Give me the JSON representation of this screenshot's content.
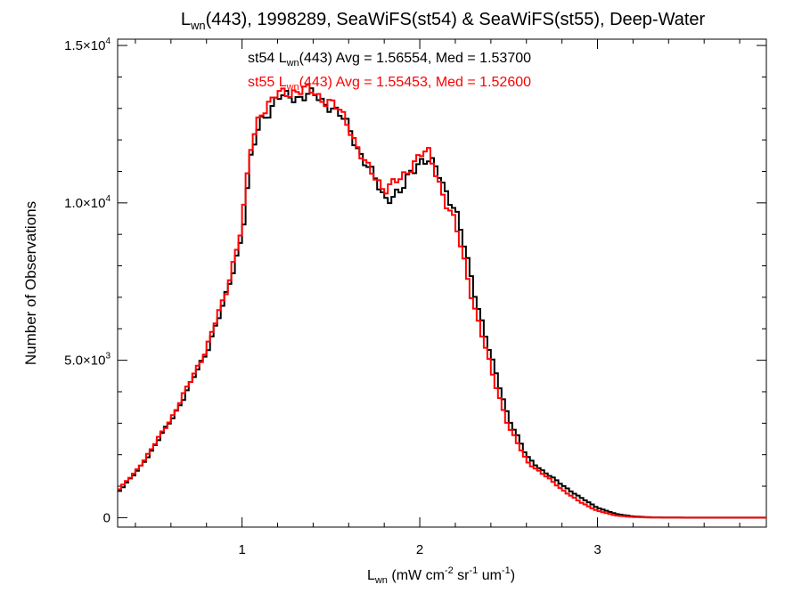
{
  "chart_data": {
    "type": "line",
    "title": {
      "main": "L",
      "sub": "wn",
      "rest": "(443), 1998289, SeaWiFS(st54) & SeaWiFS(st55), Deep-Water"
    },
    "xlabel": {
      "main": "L",
      "sub": "wn",
      "rest": " (mW cm",
      "sup1": "-2",
      "mid1": " sr",
      "sup2": "-1",
      "mid2": " um",
      "sup3": "-1",
      "end": ")"
    },
    "ylabel": "Number of Observations",
    "xlim": [
      0.3,
      3.95
    ],
    "ylim": [
      -300,
      15200
    ],
    "xticks": [
      {
        "value": 1,
        "label": "1"
      },
      {
        "value": 2,
        "label": "2"
      },
      {
        "value": 3,
        "label": "3"
      }
    ],
    "yticks": [
      {
        "value": 0,
        "mant": "0",
        "exp": ""
      },
      {
        "value": 5000,
        "mant": "5.0×10",
        "exp": "3"
      },
      {
        "value": 10000,
        "mant": "1.0×10",
        "exp": "4"
      },
      {
        "value": 15000,
        "mant": "1.5×10",
        "exp": "4"
      }
    ],
    "annotations": [
      {
        "pre": "st54 L",
        "sub": "wn",
        "post": "(443) Avg = 1.56554, Med = 1.53700",
        "color": "#000000"
      },
      {
        "pre": "st55 L",
        "sub": "wn",
        "post": "(443) Avg = 1.55453, Med = 1.52600",
        "color": "#ff0000"
      }
    ],
    "step_width": 0.02,
    "series": [
      {
        "name": "st54",
        "color": "#000000",
        "x": [
          0.3,
          0.4,
          0.5,
          0.6,
          0.7,
          0.8,
          0.9,
          1.0,
          1.05,
          1.1,
          1.2,
          1.3,
          1.4,
          1.5,
          1.6,
          1.7,
          1.8,
          1.9,
          1.95,
          2.0,
          2.05,
          2.1,
          2.2,
          2.3,
          2.4,
          2.5,
          2.6,
          2.7,
          2.8,
          2.9,
          3.0,
          3.1,
          3.2,
          3.3,
          3.5,
          3.95
        ],
        "y": [
          800,
          1400,
          2200,
          3100,
          4100,
          5300,
          6800,
          9000,
          11300,
          12600,
          13300,
          13400,
          13400,
          13100,
          12400,
          11200,
          10200,
          10300,
          11000,
          11400,
          11300,
          11000,
          9800,
          7400,
          5100,
          3200,
          1950,
          1450,
          1050,
          650,
          320,
          120,
          40,
          10,
          0,
          0
        ]
      },
      {
        "name": "st55",
        "color": "#ff0000",
        "x": [
          0.3,
          0.4,
          0.5,
          0.6,
          0.7,
          0.8,
          0.9,
          1.0,
          1.05,
          1.1,
          1.2,
          1.3,
          1.4,
          1.5,
          1.6,
          1.7,
          1.8,
          1.9,
          1.95,
          2.0,
          2.05,
          2.1,
          2.2,
          2.3,
          2.4,
          2.5,
          2.6,
          2.7,
          2.8,
          2.9,
          3.0,
          3.1,
          3.2,
          3.3,
          3.5,
          3.95
        ],
        "y": [
          850,
          1450,
          2250,
          3150,
          4200,
          5400,
          6950,
          9300,
          11700,
          12900,
          13400,
          13600,
          13500,
          13200,
          12500,
          11100,
          10500,
          10700,
          11200,
          11600,
          11500,
          10800,
          9300,
          6900,
          4700,
          2900,
          1800,
          1350,
          900,
          500,
          220,
          70,
          20,
          5,
          0,
          0
        ]
      }
    ]
  }
}
